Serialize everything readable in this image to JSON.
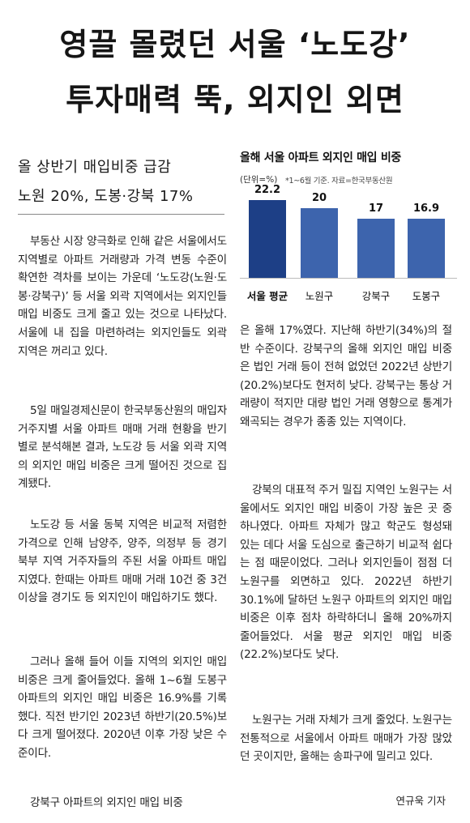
{
  "headline": {
    "line1": "영끌 몰렸던 서울 ‘노도강’",
    "line2": "투자매력 뚝, 외지인 외면"
  },
  "subheadline": {
    "line1": "올 상반기 매입비중 급감",
    "line2": "노원 20%, 도봉·강북 17%"
  },
  "body": {
    "p1": "부동산 시장 양극화로 인해 같은 서울에서도 지역별로 아파트 거래량과 가격 변동 수준이 확연한 격차를 보이는 가운데 ‘노도강(노원·도봉·강북구)’ 등 서울 외곽 지역에서는 외지인들 매입 비중도 크게 줄고 있는 것으로 나타났다. 서울에 내 집을 마련하려는 외지인들도 외곽 지역은 꺼리고 있다.",
    "p2": "5일 매일경제신문이 한국부동산원의 매입자 거주지별 서울 아파트 매매 거래 현황을 반기별로 분석해본 결과, 노도강 등 서울 외곽 지역의 외지인 매입 비중은 크게 떨어진 것으로 집계됐다.",
    "p3": "노도강 등 서울 동북 지역은 비교적 저렴한 가격으로 인해 남양주, 양주, 의정부 등 경기 북부 지역 거주자들의 주된 서울 아파트 매입지였다. 한때는 아파트 매매 거래 10건 중 3건 이상을 경기도 등 외지인이 매입하기도 했다.",
    "p4": "그러나 올해 들어 이들 지역의 외지인 매입 비중은 크게 줄어들었다. 올해 1~6월 도봉구 아파트의 외지인 매입 비중은 16.9%를 기록했다. 직전 반기인 2023년 하반기(20.5%)보다 크게 떨어졌다. 2020년 이후 가장 낮은 수준이다.",
    "p5": "강북구 아파트의 외지인 매입 비중",
    "p6": "은 올해 17%였다. 지난해 하반기(34%)의 절반 수준이다. 강북구의 올해 외지인 매입 비중은 법인 거래 등이 전혀 없었던 2022년 상반기(20.2%)보다도 현저히 낮다. 강북구는 통상 거래량이 적지만 대량 법인 거래 영향으로 통계가 왜곡되는 경우가 종종 있는 지역이다.",
    "p7": "강북의 대표적 주거 밀집 지역인 노원구는 서울에서도 외지인 매입 비중이 가장 높은 곳 중 하나였다. 아파트 자체가 많고 학군도 형성돼 있는 데다 서울 도심으로 출근하기 비교적 쉽다는 점 때문이었다. 그러나 외지인들이 점점 더 노원구를 외면하고 있다. 2022년 하반기 30.1%에 달하던 노원구 아파트의 외지인 매입 비중은 이후 점차 하락하더니 올해 20%까지 줄어들었다. 서울 평균 외지인 매입 비중(22.2%)보다도 낮다.",
    "p8": "노원구는 거래 자체가 크게 줄었다. 노원구는 전통적으로 서울에서 아파트 매매가 가장 많았던 곳이지만, 올해는 송파구에 밀리고 있다.",
    "byline": "연규욱 기자"
  },
  "chart_data": {
    "type": "bar",
    "title": "올해 서울 아파트 외지인 매입 비중",
    "unit": "(단위=%)",
    "source": "*1~6월 기준. 자료=한국부동산원",
    "categories": [
      "서울 평균",
      "노원구",
      "강북구",
      "도봉구"
    ],
    "values": [
      22.2,
      20,
      17,
      16.9
    ],
    "value_labels": [
      "22.2",
      "20",
      "17",
      "16.9"
    ],
    "ylim": [
      0,
      25
    ],
    "colors": [
      "#1d3f86",
      "#3d64ad",
      "#3d64ad",
      "#3d64ad"
    ]
  }
}
